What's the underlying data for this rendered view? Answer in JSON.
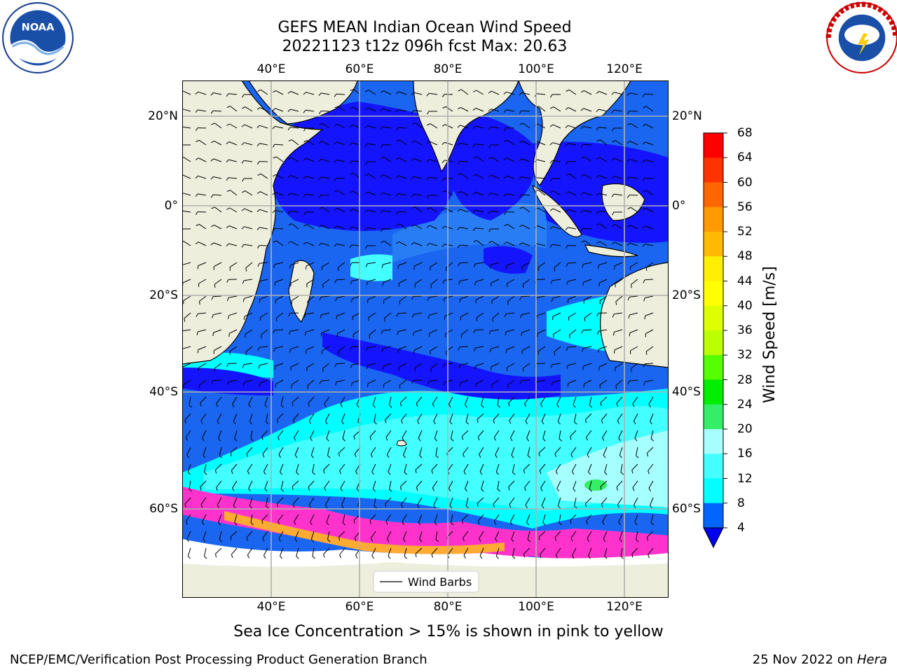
{
  "title": {
    "line1": "GEFS MEAN Indian Ocean Wind Speed",
    "line2": "20221123 t12z 096h fcst   Max: 20.63"
  },
  "map": {
    "lon_ticks": [
      "40°E",
      "60°E",
      "80°E",
      "100°E",
      "120°E"
    ],
    "lat_ticks_left": [
      "20°N",
      "0°",
      "20°S",
      "40°S",
      "60°S"
    ],
    "lat_ticks_right": [
      "20°N",
      "0°",
      "20°S",
      "40°S",
      "60°S"
    ],
    "lon_values": [
      40,
      60,
      80,
      100,
      120
    ],
    "lat_values": [
      20,
      0,
      -20,
      -40,
      -60
    ],
    "extent": {
      "lon": [
        20,
        130
      ],
      "lat": [
        -80,
        28
      ]
    },
    "legend": {
      "label": "Wind Barbs"
    },
    "colors": {
      "land": "#eeeedd",
      "ocean_4_8": "#1a66f0",
      "ocean_0_4": "#1414ff",
      "ocean_8_12": "#00ffff",
      "ocean_12_16": "#44ffff",
      "ocean_16_20": "#a6ffff",
      "sea_ice": "#ff33cc"
    }
  },
  "colorbar": {
    "label": "Wind Speed [m/s]",
    "ticks": [
      "68",
      "64",
      "60",
      "56",
      "52",
      "48",
      "44",
      "40",
      "36",
      "32",
      "28",
      "24",
      "20",
      "16",
      "12",
      "8",
      "4"
    ],
    "colors": [
      "#ff0000",
      "#ff3300",
      "#ff6600",
      "#ff9900",
      "#ffbb00",
      "#ffee00",
      "#ffff00",
      "#ddff00",
      "#bbff00",
      "#55ff00",
      "#00ee00",
      "#33ee66",
      "#a6ffff",
      "#44ffff",
      "#00ffff",
      "#0066ff",
      "#0000ee"
    ]
  },
  "caption": "Sea Ice Concentration > 15% is shown in pink to yellow",
  "footer": {
    "left": "NCEP/EMC/Verification Post Processing Product Generation Branch",
    "date": "25 Nov 2022 on ",
    "machine": "Hera"
  },
  "logos": {
    "left": "noaa-logo",
    "right": "nws-logo",
    "left_text": "NOAA"
  }
}
